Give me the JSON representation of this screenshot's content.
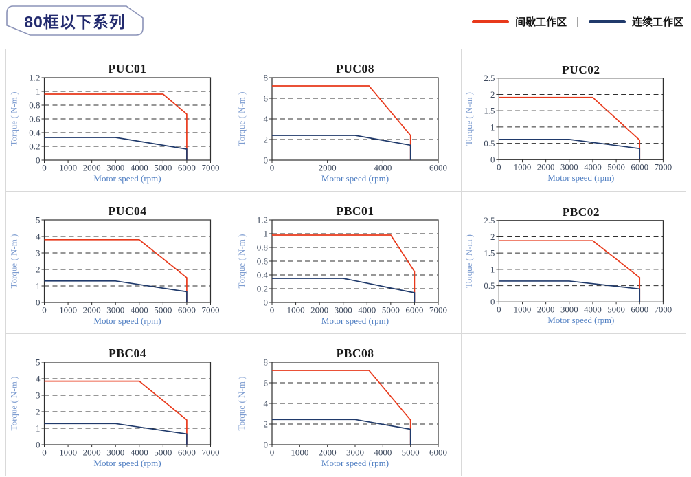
{
  "header": {
    "badge": "80框以下系列",
    "legend": [
      {
        "label": "间歇工作区",
        "color": "#e8391b"
      },
      {
        "label": "连续工作区",
        "color": "#203a6b"
      }
    ],
    "legend_separator": "|"
  },
  "colors": {
    "accent_red": "#e8391b",
    "accent_navy": "#203a6b",
    "axis_label_blue": "#4f7ec2",
    "badge_navy": "#222a6e",
    "grid_border": "#d9d9d9"
  },
  "chart_data": [
    {
      "type": "line",
      "title": "PUC01",
      "xlabel": "Motor speed (rpm)",
      "ylabel": "Torque ( N-m )",
      "xlim": [
        0,
        7000
      ],
      "xticks": [
        0,
        1000,
        2000,
        3000,
        4000,
        5000,
        6000,
        7000
      ],
      "ylim": [
        0,
        1.2
      ],
      "yticks": [
        0,
        0.2,
        0.4,
        0.6,
        0.8,
        1,
        1.2
      ],
      "grid": "dashed-horizontal",
      "legend_position": "none",
      "series": [
        {
          "name": "间歇工作区",
          "color": "#e8391b",
          "points": [
            [
              0,
              0.96
            ],
            [
              5000,
              0.96
            ],
            [
              6000,
              0.67
            ],
            [
              6000,
              0
            ]
          ]
        },
        {
          "name": "连续工作区",
          "color": "#203a6b",
          "points": [
            [
              0,
              0.33
            ],
            [
              3000,
              0.33
            ],
            [
              6000,
              0.16
            ],
            [
              6000,
              0
            ]
          ]
        }
      ]
    },
    {
      "type": "line",
      "title": "PUC08",
      "xlabel": "Motor speed (rpm)",
      "ylabel": "Torque ( N-m )",
      "xlim": [
        0,
        6000
      ],
      "xticks": [
        0,
        2000,
        4000,
        6000
      ],
      "ylim": [
        0,
        8
      ],
      "yticks": [
        0,
        2,
        4,
        6,
        8
      ],
      "grid": "dashed-horizontal",
      "legend_position": "none",
      "series": [
        {
          "name": "间歇工作区",
          "color": "#e8391b",
          "points": [
            [
              0,
              7.2
            ],
            [
              3500,
              7.2
            ],
            [
              5000,
              2.4
            ],
            [
              5000,
              0
            ]
          ]
        },
        {
          "name": "连续工作区",
          "color": "#203a6b",
          "points": [
            [
              0,
              2.4
            ],
            [
              3000,
              2.4
            ],
            [
              5000,
              1.45
            ],
            [
              5000,
              0
            ]
          ]
        }
      ]
    },
    {
      "type": "line",
      "title": "PUC02",
      "xlabel": "Motor speed (rpm)",
      "ylabel": "Torque ( N-m )",
      "xlim": [
        0,
        7000
      ],
      "xticks": [
        0,
        1000,
        2000,
        3000,
        4000,
        5000,
        6000,
        7000
      ],
      "ylim": [
        0,
        2.5
      ],
      "yticks": [
        0,
        0.5,
        1,
        1.5,
        2,
        2.5
      ],
      "grid": "dashed-horizontal",
      "legend_position": "none",
      "series": [
        {
          "name": "间歇工作区",
          "color": "#e8391b",
          "points": [
            [
              0,
              1.91
            ],
            [
              4000,
              1.91
            ],
            [
              6000,
              0.6
            ],
            [
              6000,
              0
            ]
          ]
        },
        {
          "name": "连续工作区",
          "color": "#203a6b",
          "points": [
            [
              0,
              0.62
            ],
            [
              3000,
              0.62
            ],
            [
              6000,
              0.34
            ],
            [
              6000,
              0
            ]
          ]
        }
      ]
    },
    {
      "type": "line",
      "title": "PUC04",
      "xlabel": "Motor speed (rpm)",
      "ylabel": "Torque ( N-m )",
      "xlim": [
        0,
        7000
      ],
      "xticks": [
        0,
        1000,
        2000,
        3000,
        4000,
        5000,
        6000,
        7000
      ],
      "ylim": [
        0,
        5
      ],
      "yticks": [
        0,
        1,
        2,
        3,
        4,
        5
      ],
      "grid": "dashed-horizontal",
      "legend_position": "none",
      "series": [
        {
          "name": "间歇工作区",
          "color": "#e8391b",
          "points": [
            [
              0,
              3.8
            ],
            [
              4000,
              3.8
            ],
            [
              6000,
              1.5
            ],
            [
              6000,
              0
            ]
          ]
        },
        {
          "name": "连续工作区",
          "color": "#203a6b",
          "points": [
            [
              0,
              1.3
            ],
            [
              3000,
              1.3
            ],
            [
              6000,
              0.65
            ],
            [
              6000,
              0
            ]
          ]
        }
      ]
    },
    {
      "type": "line",
      "title": "PBC01",
      "xlabel": "Motor speed (rpm)",
      "ylabel": "Torque ( N-m )",
      "xlim": [
        0,
        7000
      ],
      "xticks": [
        0,
        1000,
        2000,
        3000,
        4000,
        5000,
        6000,
        7000
      ],
      "ylim": [
        0,
        1.2
      ],
      "yticks": [
        0,
        0.2,
        0.4,
        0.6,
        0.8,
        1,
        1.2
      ],
      "grid": "dashed-horizontal",
      "legend_position": "none",
      "series": [
        {
          "name": "间歇工作区",
          "color": "#e8391b",
          "points": [
            [
              0,
              0.98
            ],
            [
              5000,
              0.98
            ],
            [
              6000,
              0.45
            ],
            [
              6000,
              0
            ]
          ]
        },
        {
          "name": "连续工作区",
          "color": "#203a6b",
          "points": [
            [
              0,
              0.35
            ],
            [
              3000,
              0.35
            ],
            [
              6000,
              0.14
            ],
            [
              6000,
              0
            ]
          ]
        }
      ]
    },
    {
      "type": "line",
      "title": "PBC02",
      "xlabel": "Motor speed (rpm)",
      "ylabel": "Torque ( N-m )",
      "xlim": [
        0,
        7000
      ],
      "xticks": [
        0,
        1000,
        2000,
        3000,
        4000,
        5000,
        6000,
        7000
      ],
      "ylim": [
        0,
        2.5
      ],
      "yticks": [
        0,
        0.5,
        1,
        1.5,
        2,
        2.5
      ],
      "grid": "dashed-horizontal",
      "legend_position": "none",
      "series": [
        {
          "name": "间歇工作区",
          "color": "#e8391b",
          "points": [
            [
              0,
              1.88
            ],
            [
              4000,
              1.88
            ],
            [
              6000,
              0.75
            ],
            [
              6000,
              0
            ]
          ]
        },
        {
          "name": "连续工作区",
          "color": "#203a6b",
          "points": [
            [
              0,
              0.64
            ],
            [
              3000,
              0.64
            ],
            [
              6000,
              0.4
            ],
            [
              6000,
              0
            ]
          ]
        }
      ]
    },
    {
      "type": "line",
      "title": "PBC04",
      "xlabel": "Motor speed (rpm)",
      "ylabel": "Torque ( N-m )",
      "xlim": [
        0,
        7000
      ],
      "xticks": [
        0,
        1000,
        2000,
        3000,
        4000,
        5000,
        6000,
        7000
      ],
      "ylim": [
        0,
        5
      ],
      "yticks": [
        0,
        1,
        2,
        3,
        4,
        5
      ],
      "grid": "dashed-horizontal",
      "legend_position": "none",
      "series": [
        {
          "name": "间歇工作区",
          "color": "#e8391b",
          "points": [
            [
              0,
              3.85
            ],
            [
              4000,
              3.85
            ],
            [
              6000,
              1.5
            ],
            [
              6000,
              0
            ]
          ]
        },
        {
          "name": "连续工作区",
          "color": "#203a6b",
          "points": [
            [
              0,
              1.28
            ],
            [
              3000,
              1.28
            ],
            [
              6000,
              0.65
            ],
            [
              6000,
              0
            ]
          ]
        }
      ]
    },
    {
      "type": "line",
      "title": "PBC08",
      "xlabel": "Motor speed (rpm)",
      "ylabel": "Torque ( N-m )",
      "xlim": [
        0,
        6000
      ],
      "xticks": [
        0,
        1000,
        2000,
        3000,
        4000,
        5000,
        6000
      ],
      "ylim": [
        0,
        8
      ],
      "yticks": [
        0,
        2,
        4,
        6,
        8
      ],
      "grid": "dashed-horizontal",
      "legend_position": "none",
      "series": [
        {
          "name": "间歇工作区",
          "color": "#e8391b",
          "points": [
            [
              0,
              7.2
            ],
            [
              3500,
              7.2
            ],
            [
              5000,
              2.4
            ],
            [
              5000,
              0
            ]
          ]
        },
        {
          "name": "连续工作区",
          "color": "#203a6b",
          "points": [
            [
              0,
              2.45
            ],
            [
              3000,
              2.45
            ],
            [
              5000,
              1.5
            ],
            [
              5000,
              0
            ]
          ]
        }
      ]
    }
  ]
}
